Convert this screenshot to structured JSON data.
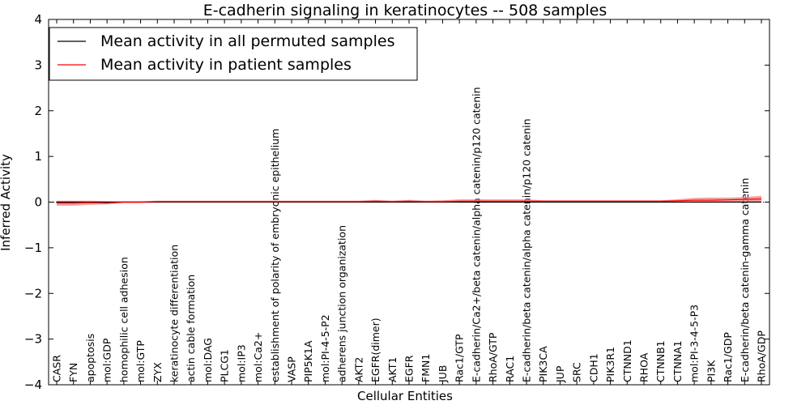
{
  "chart_data": {
    "type": "line",
    "title": "E-cadherin signaling in keratinocytes -- 508 samples",
    "xlabel": "Cellular Entities",
    "ylabel": "Inferred Activity",
    "ylim": [
      -4,
      4
    ],
    "yticks": [
      4,
      3,
      2,
      1,
      0,
      -1,
      -2,
      -3,
      -4
    ],
    "ytick_labels": [
      "4",
      "3",
      "2",
      "1",
      "0",
      "−1",
      "−2",
      "−3",
      "−4"
    ],
    "grid": false,
    "legend_position": "top-left",
    "reference_line": {
      "y": 0,
      "style": "dotted"
    },
    "categories": [
      "CASR",
      "FYN",
      "apoptosis",
      "mol:GDP",
      "homophilic cell adhesion",
      "mol:GTP",
      "ZYX",
      "keratinocyte differentiation",
      "actin cable formation",
      "mol:DAG",
      "PLCG1",
      "mol:IP3",
      "mol:Ca2+",
      "establishment of polarity of embryonic epithelium",
      "VASP",
      "PIP5K1A",
      "mol:PI-4-5-P2",
      "adherens junction organization",
      "AKT2",
      "EGFR(dimer)",
      "AKT1",
      "EGFR",
      "FMN1",
      "JUB",
      "Rac1/GTP",
      "E-cadherin/Ca2+/beta catenin/alpha catenin/p120 catenin",
      "RhoA/GTP",
      "RAC1",
      "E-cadherin/beta catenin/alpha catenin/p120 catenin",
      "PIK3CA",
      "JUP",
      "SRC",
      "CDH1",
      "PIK3R1",
      "CTNND1",
      "RHOA",
      "CTNNB1",
      "CTNNA1",
      "mol:PI-3-4-5-P3",
      "PI3K",
      "Rac1/GDP",
      "E-cadherin/beta catenin-gamma catenin",
      "RhoA/GDP"
    ],
    "series": [
      {
        "name": "Mean activity in all permuted samples",
        "color": "#000000",
        "values": [
          0,
          0,
          0,
          0,
          0,
          0,
          0,
          0,
          0,
          0,
          0,
          0,
          0,
          0,
          0,
          0,
          0,
          0,
          0,
          0,
          0,
          0,
          0,
          0,
          0,
          0,
          0,
          0,
          0,
          0,
          0,
          0,
          0,
          0,
          0,
          0,
          0,
          0,
          0,
          0,
          0,
          0,
          0
        ]
      },
      {
        "name": "Mean activity in patient samples",
        "color": "#ff0000",
        "band_color": "#f08080",
        "values": [
          -0.02,
          -0.02,
          -0.01,
          -0.02,
          0.0,
          0.0,
          0.01,
          0.01,
          0.01,
          0.01,
          0.01,
          0.01,
          0.01,
          0.01,
          0.01,
          0.01,
          0.01,
          0.01,
          0.01,
          0.02,
          0.01,
          0.02,
          0.01,
          0.01,
          0.02,
          0.02,
          0.02,
          0.02,
          0.02,
          0.02,
          0.02,
          0.02,
          0.02,
          0.02,
          0.02,
          0.02,
          0.02,
          0.03,
          0.04,
          0.04,
          0.05,
          0.06,
          0.07
        ],
        "band_lower": [
          -0.08,
          -0.08,
          -0.06,
          -0.05,
          -0.02,
          -0.02,
          -0.01,
          -0.01,
          -0.01,
          -0.01,
          -0.01,
          -0.01,
          -0.01,
          -0.01,
          -0.01,
          -0.01,
          -0.01,
          -0.01,
          -0.01,
          -0.01,
          -0.01,
          -0.01,
          -0.01,
          -0.01,
          -0.01,
          -0.01,
          -0.01,
          -0.01,
          -0.01,
          0.0,
          0.0,
          0.0,
          0.0,
          0.0,
          0.0,
          0.0,
          0.0,
          0.0,
          0.0,
          0.0,
          0.0,
          0.0,
          -0.01
        ],
        "band_upper": [
          0.03,
          0.03,
          0.03,
          0.02,
          0.02,
          0.02,
          0.03,
          0.03,
          0.03,
          0.03,
          0.03,
          0.03,
          0.03,
          0.03,
          0.03,
          0.03,
          0.03,
          0.03,
          0.03,
          0.05,
          0.03,
          0.05,
          0.03,
          0.04,
          0.06,
          0.06,
          0.06,
          0.06,
          0.06,
          0.04,
          0.04,
          0.04,
          0.04,
          0.04,
          0.04,
          0.04,
          0.04,
          0.06,
          0.09,
          0.1,
          0.1,
          0.11,
          0.14
        ]
      }
    ]
  }
}
